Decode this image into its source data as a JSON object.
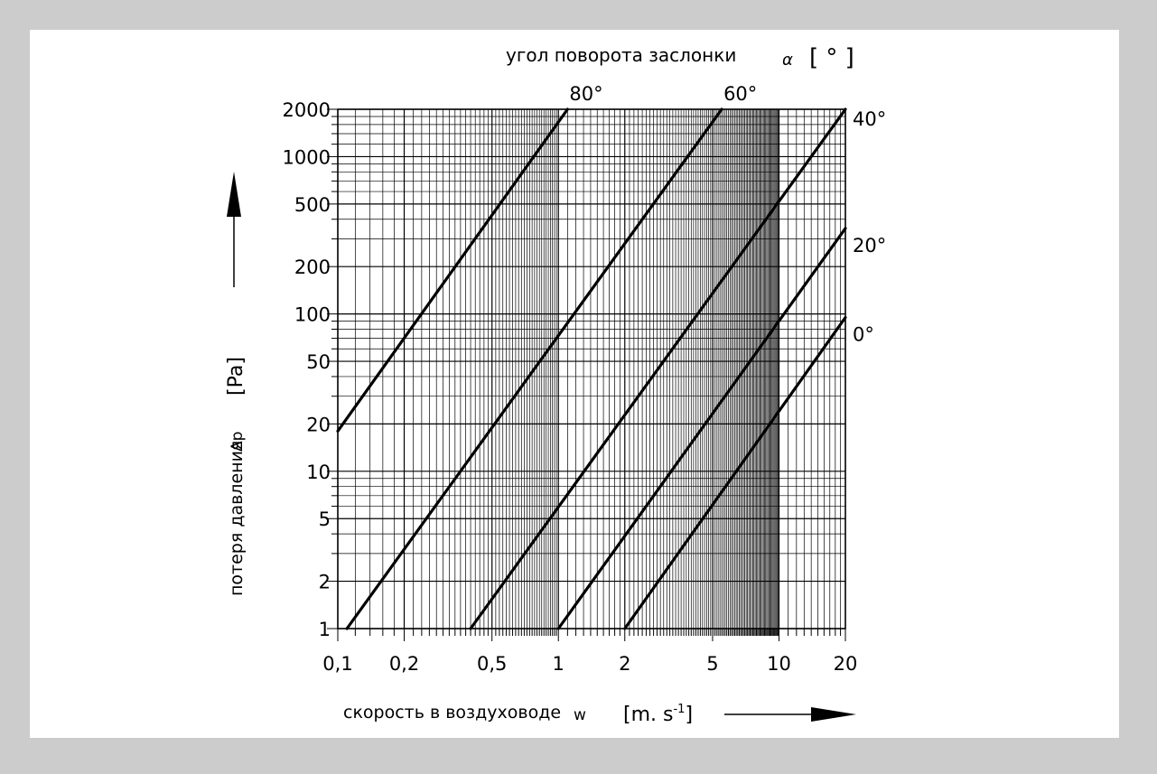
{
  "chart_data": {
    "type": "line",
    "x_scale": "log",
    "y_scale": "log",
    "grid": true,
    "xlim": [
      0.1,
      20
    ],
    "ylim": [
      1,
      2000
    ],
    "xlabel": "скорость в воздуховоде",
    "xlabel_symbol": "w",
    "xlabel_unit": "[m. s-1]",
    "ylabel": "потеря давления",
    "ylabel_symbol": "Δp",
    "ylabel_unit": "[Pa]",
    "top_label": "угол поворота заслонки",
    "top_label_symbol": "α",
    "top_label_unit": "[ ° ]",
    "x_ticks": [
      {
        "value": 0.1,
        "label": "0,1"
      },
      {
        "value": 0.2,
        "label": "0,2"
      },
      {
        "value": 0.5,
        "label": "0,5"
      },
      {
        "value": 1,
        "label": "1"
      },
      {
        "value": 2,
        "label": "2"
      },
      {
        "value": 5,
        "label": "5"
      },
      {
        "value": 10,
        "label": "10"
      },
      {
        "value": 20,
        "label": "20"
      }
    ],
    "y_ticks": [
      {
        "value": 1,
        "label": "1"
      },
      {
        "value": 2,
        "label": "2"
      },
      {
        "value": 5,
        "label": "5"
      },
      {
        "value": 10,
        "label": "10"
      },
      {
        "value": 20,
        "label": "20"
      },
      {
        "value": 50,
        "label": "50"
      },
      {
        "value": 100,
        "label": "100"
      },
      {
        "value": 200,
        "label": "200"
      },
      {
        "value": 500,
        "label": "500"
      },
      {
        "value": 1000,
        "label": "1000"
      },
      {
        "value": 2000,
        "label": "2000"
      }
    ],
    "series": [
      {
        "name": "80°",
        "x": [
          0.1,
          1.1
        ],
        "y": [
          18,
          2000
        ]
      },
      {
        "name": "60°",
        "x": [
          0.11,
          5.5
        ],
        "y": [
          1,
          2000
        ]
      },
      {
        "name": "40°",
        "x": [
          0.4,
          20
        ],
        "y": [
          1,
          2000
        ]
      },
      {
        "name": "20°",
        "x": [
          1.0,
          20
        ],
        "y": [
          1,
          350
        ]
      },
      {
        "name": "0°",
        "x": [
          2.0,
          20
        ],
        "y": [
          1,
          95
        ]
      }
    ]
  }
}
